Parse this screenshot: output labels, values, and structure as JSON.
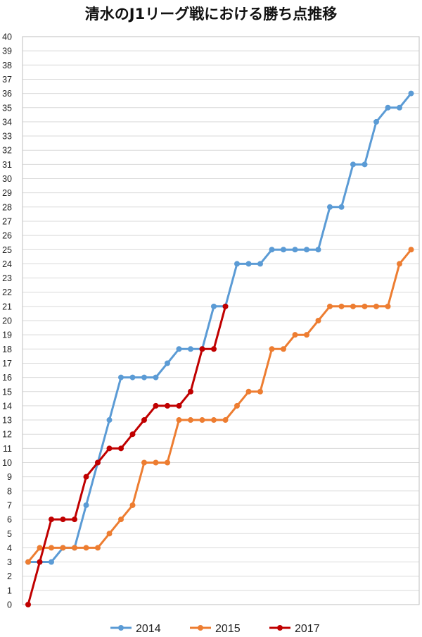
{
  "chart_data": {
    "type": "line",
    "title": "清水のJ1リーグ戦における勝ち点推移",
    "xlabel": "",
    "ylabel": "",
    "ylim": [
      0,
      40
    ],
    "yticks": [
      "0",
      "1",
      "2",
      "3",
      "4",
      "5",
      "6",
      "7",
      "8",
      "9",
      "10",
      "11",
      "12",
      "13",
      "14",
      "15",
      "16",
      "17",
      "18",
      "19",
      "20",
      "21",
      "22",
      "23",
      "24",
      "25",
      "26",
      "27",
      "28",
      "29",
      "30",
      "31",
      "32",
      "33",
      "34",
      "35",
      "36",
      "37",
      "38",
      "39",
      "40"
    ],
    "x_count": 34,
    "grid": "horizontal",
    "legend_position": "bottom",
    "series": [
      {
        "name": "2014",
        "color": "#5B9BD5",
        "values": [
          3,
          3,
          3,
          4,
          4,
          7,
          10,
          13,
          16,
          16,
          16,
          16,
          17,
          18,
          18,
          18,
          21,
          21,
          24,
          24,
          24,
          25,
          25,
          25,
          25,
          25,
          28,
          28,
          31,
          31,
          34,
          35,
          35,
          36
        ]
      },
      {
        "name": "2015",
        "color": "#ED7D31",
        "values": [
          3,
          4,
          4,
          4,
          4,
          4,
          4,
          5,
          6,
          7,
          10,
          10,
          10,
          13,
          13,
          13,
          13,
          13,
          14,
          15,
          15,
          18,
          18,
          19,
          19,
          20,
          21,
          21,
          21,
          21,
          21,
          21,
          24,
          25
        ]
      },
      {
        "name": "2017",
        "color": "#C00000",
        "values": [
          0,
          3,
          6,
          6,
          6,
          9,
          10,
          11,
          11,
          12,
          13,
          14,
          14,
          14,
          15,
          18,
          18,
          21
        ]
      }
    ]
  }
}
